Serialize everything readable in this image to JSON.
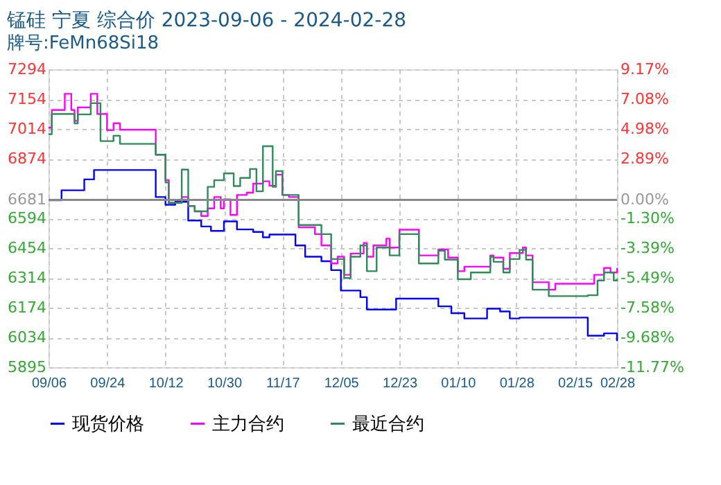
{
  "chart_data": {
    "type": "step",
    "title": "锰硅 宁夏 综合价 2023-09-06 - 2024-02-28",
    "subtitle": "牌号:FeMn68Si18",
    "xlim": [
      "2023-09-06",
      "2024-02-28"
    ],
    "xticks": [
      {
        "value": "2023-09-06",
        "label": "09/06"
      },
      {
        "value": "2023-09-24",
        "label": "09/24"
      },
      {
        "value": "2023-10-12",
        "label": "10/12"
      },
      {
        "value": "2023-10-30",
        "label": "10/30"
      },
      {
        "value": "2023-11-17",
        "label": "11/17"
      },
      {
        "value": "2023-12-05",
        "label": "12/05"
      },
      {
        "value": "2023-12-23",
        "label": "12/23"
      },
      {
        "value": "2024-01-10",
        "label": "01/10"
      },
      {
        "value": "2024-01-28",
        "label": "01/28"
      },
      {
        "value": "2024-02-15",
        "label": "02/15"
      },
      {
        "value": "2024-02-28",
        "label": "02/28"
      }
    ],
    "ylim": [
      5895,
      7294
    ],
    "yticks": [
      5895,
      6034,
      6174,
      6314,
      6454,
      6594,
      6681,
      6874,
      7014,
      7154,
      7294
    ],
    "y2lim": [
      -11.77,
      9.17
    ],
    "y2ticks": [
      {
        "value": -11.77,
        "label": "-11.77%"
      },
      {
        "value": -9.68,
        "label": "-9.68%"
      },
      {
        "value": -7.58,
        "label": "-7.58%"
      },
      {
        "value": -5.49,
        "label": "-5.49%"
      },
      {
        "value": -3.39,
        "label": "-3.39%"
      },
      {
        "value": -1.3,
        "label": "-1.30%"
      },
      {
        "value": 0,
        "label": "0.00%"
      },
      {
        "value": 2.89,
        "label": "2.89%"
      },
      {
        "value": 4.98,
        "label": "4.98%"
      },
      {
        "value": 7.08,
        "label": "7.08%"
      },
      {
        "value": 9.17,
        "label": "9.17%"
      }
    ],
    "ref_lines": [
      {
        "axis": "y",
        "value": 6681,
        "color": "#888888"
      }
    ],
    "grid": true,
    "legend": "bottom",
    "series": [
      {
        "name": "现货价格",
        "color": "#0000ff",
        "x": [
          "2023-09-06",
          "2023-09-10",
          "2023-09-17",
          "2023-09-20",
          "2023-10-07",
          "2023-10-09",
          "2023-10-12",
          "2023-10-15",
          "2023-10-19",
          "2023-10-23",
          "2023-10-26",
          "2023-10-30",
          "2023-11-03",
          "2023-11-08",
          "2023-11-11",
          "2023-11-13",
          "2023-11-21",
          "2023-11-24",
          "2023-11-29",
          "2023-12-02",
          "2023-12-05",
          "2023-12-11",
          "2023-12-13",
          "2023-12-22",
          "2024-01-04",
          "2024-01-08",
          "2024-01-12",
          "2024-01-19",
          "2024-01-23",
          "2024-01-26",
          "2024-01-29",
          "2024-02-19",
          "2024-02-24",
          "2024-02-28"
        ],
        "values": [
          6679,
          6726,
          6777,
          6821,
          6821,
          6694,
          6658,
          6672,
          6584,
          6556,
          6535,
          6580,
          6542,
          6530,
          6505,
          6518,
          6467,
          6414,
          6393,
          6351,
          6255,
          6224,
          6166,
          6217,
          6181,
          6149,
          6124,
          6170,
          6157,
          6124,
          6128,
          6043,
          6054,
          6018
        ]
      },
      {
        "name": "主力合约",
        "color": "#ff00ff",
        "x": [
          "2023-09-06",
          "2023-09-07",
          "2023-09-11",
          "2023-09-13",
          "2023-09-14",
          "2023-09-15",
          "2023-09-19",
          "2023-09-21",
          "2023-09-24",
          "2023-09-26",
          "2023-09-28",
          "2023-10-08",
          "2023-10-09",
          "2023-10-12",
          "2023-10-13",
          "2023-10-17",
          "2023-10-19",
          "2023-10-21",
          "2023-10-23",
          "2023-10-25",
          "2023-10-27",
          "2023-10-29",
          "2023-10-30",
          "2023-11-01",
          "2023-11-03",
          "2023-11-06",
          "2023-11-08",
          "2023-11-11",
          "2023-11-13",
          "2023-11-15",
          "2023-11-17",
          "2023-11-19",
          "2023-11-22",
          "2023-11-27",
          "2023-11-29",
          "2023-12-02",
          "2023-12-04",
          "2023-12-06",
          "2023-12-08",
          "2023-12-12",
          "2023-12-13",
          "2023-12-15",
          "2023-12-19",
          "2023-12-20",
          "2023-12-23",
          "2023-12-26",
          "2023-12-29",
          "2024-01-02",
          "2024-01-04",
          "2024-01-07",
          "2024-01-10",
          "2024-01-12",
          "2024-01-16",
          "2024-01-20",
          "2024-01-21",
          "2024-01-24",
          "2024-01-26",
          "2024-01-30",
          "2024-01-31",
          "2024-02-02",
          "2024-02-07",
          "2024-02-09",
          "2024-02-19",
          "2024-02-21",
          "2024-02-24",
          "2024-02-26",
          "2024-02-28"
        ],
        "values": [
          7020,
          7103,
          7179,
          7103,
          7052,
          7115,
          7179,
          7084,
          7008,
          7040,
          7010,
          7010,
          6893,
          6774,
          6667,
          6694,
          6652,
          6627,
          6605,
          6641,
          6694,
          6641,
          6683,
          6610,
          6704,
          6715,
          6757,
          6768,
          6747,
          6799,
          6704,
          6694,
          6552,
          6520,
          6467,
          6382,
          6414,
          6329,
          6429,
          6478,
          6414,
          6467,
          6499,
          6457,
          6541,
          6541,
          6420,
          6420,
          6448,
          6410,
          6346,
          6367,
          6367,
          6420,
          6410,
          6357,
          6431,
          6457,
          6420,
          6294,
          6259,
          6287,
          6287,
          6329,
          6361,
          6340,
          6361
        ]
      },
      {
        "name": "最近合约",
        "color": "#2e8b57",
        "x": [
          "2023-09-06",
          "2023-09-07",
          "2023-09-14",
          "2023-09-15",
          "2023-09-19",
          "2023-09-22",
          "2023-09-26",
          "2023-09-28",
          "2023-10-08",
          "2023-10-09",
          "2023-10-12",
          "2023-10-13",
          "2023-10-17",
          "2023-10-19",
          "2023-10-21",
          "2023-10-25",
          "2023-10-27",
          "2023-10-30",
          "2023-11-02",
          "2023-11-04",
          "2023-11-07",
          "2023-11-09",
          "2023-11-11",
          "2023-11-14",
          "2023-11-15",
          "2023-11-17",
          "2023-11-22",
          "2023-11-29",
          "2023-12-02",
          "2023-12-06",
          "2023-12-08",
          "2023-12-11",
          "2023-12-13",
          "2023-12-16",
          "2023-12-20",
          "2023-12-23",
          "2023-12-26",
          "2023-12-29",
          "2024-01-04",
          "2024-01-06",
          "2024-01-10",
          "2024-01-14",
          "2024-01-20",
          "2024-01-21",
          "2024-01-24",
          "2024-01-26",
          "2024-01-29",
          "2024-01-31",
          "2024-02-02",
          "2024-02-07",
          "2024-02-19",
          "2024-02-22",
          "2024-02-24",
          "2024-02-27",
          "2024-02-28"
        ],
        "values": [
          6989,
          7084,
          7040,
          7082,
          7135,
          6957,
          6982,
          6944,
          6944,
          6893,
          6763,
          6667,
          6823,
          6652,
          6627,
          6742,
          6773,
          6805,
          6746,
          6784,
          6826,
          6721,
          6933,
          6742,
          6816,
          6704,
          6563,
          6520,
          6403,
          6314,
          6414,
          6467,
          6346,
          6457,
          6420,
          6520,
          6520,
          6382,
          6442,
          6400,
          6308,
          6340,
          6414,
          6390,
          6340,
          6403,
          6446,
          6400,
          6259,
          6229,
          6233,
          6302,
          6340,
          6302,
          6310
        ]
      }
    ]
  }
}
